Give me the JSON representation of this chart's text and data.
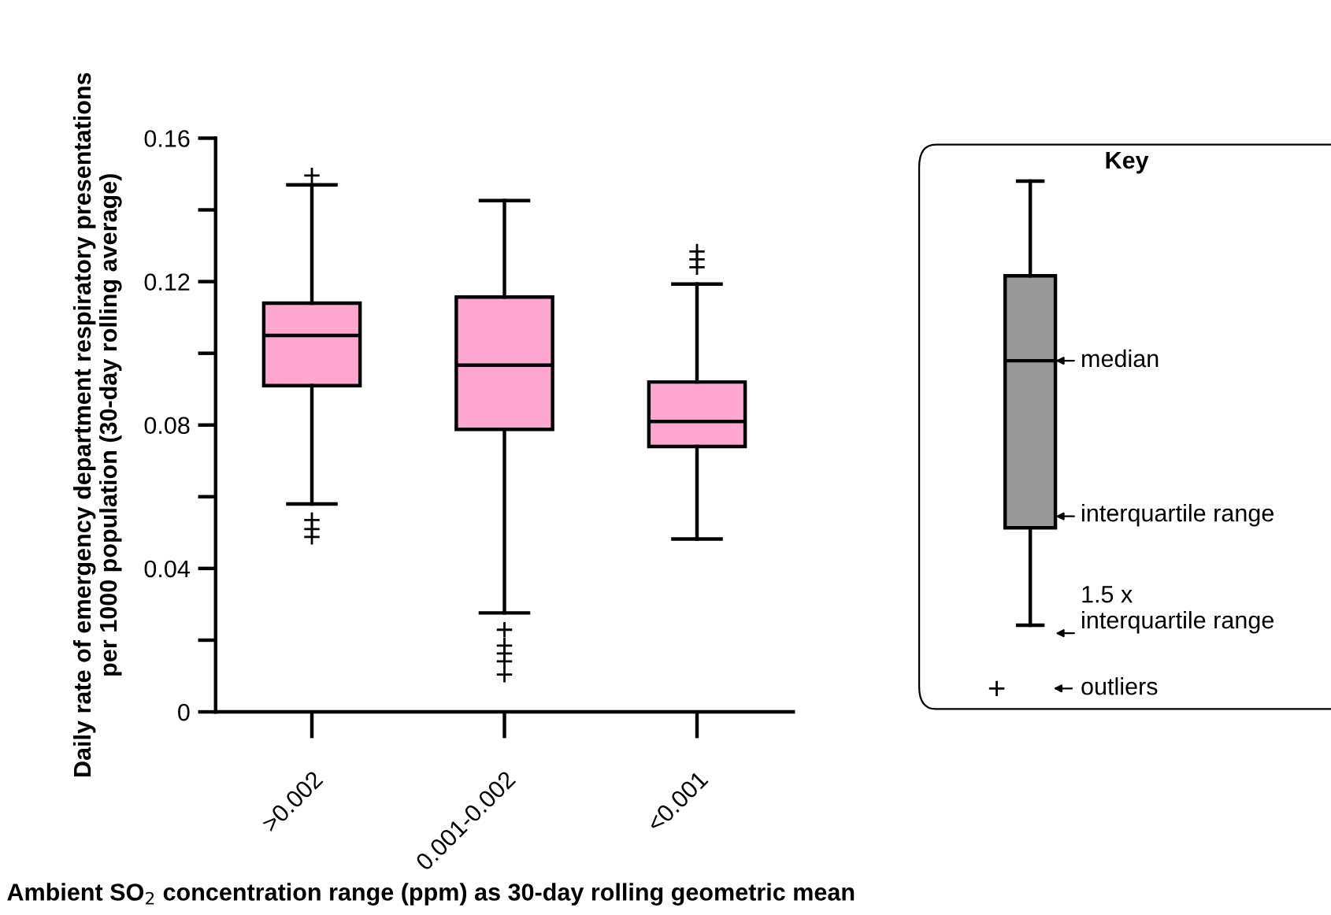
{
  "chart_data": {
    "type": "box",
    "ylabel": "Daily rate of emergency department respiratory presentations\nper 1000 population (30-day rolling average)",
    "xlabel": "Ambient SO$_{2}$ concentration range (ppm) as 30-day rolling geometric mean",
    "categories": [
      ">0.002",
      "0.001-0.002",
      "<0.001"
    ],
    "series": [
      {
        "color": "#ffa6d1",
        "boxes": [
          {
            "low": 0.058,
            "q1": 0.091,
            "median": 0.105,
            "q3": 0.114,
            "high": 0.147,
            "outliers": [
              0.1496,
              0.0535,
              0.051,
              0.0488
            ]
          },
          {
            "low": 0.0276,
            "q1": 0.0788,
            "median": 0.0967,
            "q3": 0.1157,
            "high": 0.1426,
            "outliers": [
              0.0229,
              0.0185,
              0.0163,
              0.0141,
              0.0104
            ]
          },
          {
            "low": 0.0482,
            "q1": 0.074,
            "median": 0.081,
            "q3": 0.092,
            "high": 0.1193,
            "outliers": [
              0.1284,
              0.1262,
              0.124
            ]
          }
        ]
      }
    ],
    "ylim": [
      0,
      0.16
    ],
    "yticks": [
      0,
      {
        "value": 0.02,
        "label": null
      },
      0.04,
      {
        "value": 0.06,
        "label": null
      },
      0.08,
      {
        "value": 0.1,
        "label": null
      },
      0.12,
      {
        "value": 0.14,
        "label": null
      },
      0.16
    ],
    "grid": false,
    "annotations": [
      "Key",
      "median",
      "interquartile range",
      "1.5 x\ninterquartile range",
      "outliers"
    ]
  }
}
